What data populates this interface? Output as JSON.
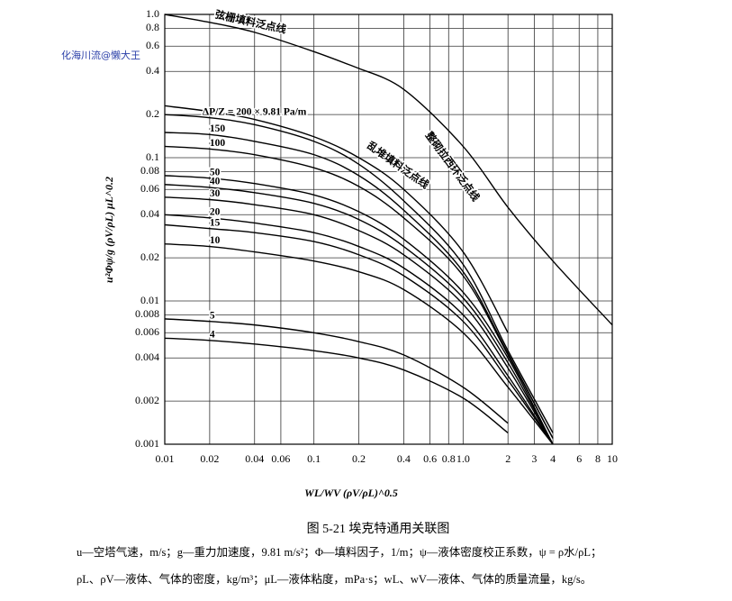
{
  "chart_data": {
    "type": "line",
    "watermark": "化海川流@懒大王",
    "ylabel": "u²Φψ/g (ρV/ρL) μL^0.2",
    "xlabel": "WL/WV (ρV/ρL)^0.5",
    "caption": "图 5-21   埃克特通用关联图",
    "notes": [
      "u—空塔气速，m/s；g—重力加速度，9.81 m/s²；Φ—填料因子，1/m；ψ—液体密度校正系数，ψ = ρ水/ρL；",
      "ρL、ρV—液体、气体的密度，kg/m³；μL—液体粘度，mPa·s；wL、wV—液体、气体的质量流量，kg/s。"
    ],
    "log_x": true,
    "log_y": true,
    "grid": true,
    "color": "#000000",
    "xlim": [
      0.01,
      10
    ],
    "ylim": [
      0.001,
      1
    ],
    "xticks": [
      0.01,
      0.02,
      0.04,
      0.06,
      0.1,
      0.2,
      0.4,
      0.6,
      0.8,
      {
        "value": 1,
        "label": "1.0"
      },
      2,
      3,
      4,
      6,
      8,
      10
    ],
    "yticks": [
      {
        "value": 1,
        "label": "1.0"
      },
      0.8,
      0.6,
      0.4,
      0.2,
      0.1,
      0.08,
      0.06,
      0.04,
      0.02,
      0.01,
      0.008,
      0.006,
      0.004,
      0.002,
      0.001
    ],
    "x": [
      0.01,
      0.02,
      0.04,
      0.1,
      0.2,
      0.4,
      1,
      2,
      4,
      10
    ],
    "series": [
      {
        "name": "弦栅填料泛点线",
        "values": [
          1.0,
          0.88,
          0.75,
          0.55,
          0.42,
          null,
          null,
          null,
          null,
          null
        ]
      },
      {
        "name": "整砌拉西环泛点线",
        "values": [
          null,
          null,
          null,
          null,
          0.42,
          0.3,
          0.12,
          0.045,
          0.019,
          0.0068
        ]
      },
      {
        "name": "乱堆填料泛点线",
        "values": [
          0.23,
          0.21,
          0.185,
          0.14,
          0.1,
          0.06,
          0.022,
          0.006,
          null,
          null
        ]
      },
      {
        "name": "ΔP/Z = 200 × 9.81 Pa/m",
        "values": [
          0.2,
          0.19,
          0.17,
          0.13,
          0.09,
          0.05,
          0.018,
          0.0045,
          0.0012,
          null
        ]
      },
      {
        "name": "150",
        "values": [
          0.15,
          0.145,
          0.13,
          0.105,
          0.075,
          0.043,
          0.016,
          0.0043,
          0.0011,
          null
        ]
      },
      {
        "name": "100",
        "values": [
          0.12,
          0.115,
          0.105,
          0.085,
          0.063,
          0.038,
          0.015,
          0.0042,
          0.0011,
          null
        ]
      },
      {
        "name": "50",
        "values": [
          0.075,
          0.072,
          0.066,
          0.055,
          0.042,
          0.027,
          0.0115,
          0.004,
          0.001,
          null
        ]
      },
      {
        "name": "40",
        "values": [
          0.065,
          0.062,
          0.057,
          0.048,
          0.037,
          0.024,
          0.0105,
          0.0037,
          0.001,
          null
        ]
      },
      {
        "name": "30",
        "values": [
          0.053,
          0.051,
          0.047,
          0.04,
          0.031,
          0.021,
          0.0095,
          0.0034,
          0.001,
          null
        ]
      },
      {
        "name": "20",
        "values": [
          0.04,
          0.038,
          0.035,
          0.03,
          0.024,
          0.017,
          0.008,
          0.003,
          0.001,
          null
        ]
      },
      {
        "name": "15",
        "values": [
          0.034,
          0.032,
          0.03,
          0.026,
          0.021,
          0.015,
          0.0072,
          0.0028,
          0.001,
          null
        ]
      },
      {
        "name": "10",
        "values": [
          0.025,
          0.024,
          0.022,
          0.019,
          0.016,
          0.012,
          0.006,
          0.0025,
          0.001,
          null
        ]
      },
      {
        "name": "5",
        "values": [
          0.0075,
          0.0072,
          0.0068,
          0.006,
          0.0052,
          0.0042,
          0.0025,
          0.0014,
          null,
          null
        ]
      },
      {
        "name": "4",
        "values": [
          0.0055,
          0.0053,
          0.005,
          0.0045,
          0.004,
          0.0033,
          0.0021,
          0.0012,
          null,
          null
        ]
      }
    ]
  }
}
